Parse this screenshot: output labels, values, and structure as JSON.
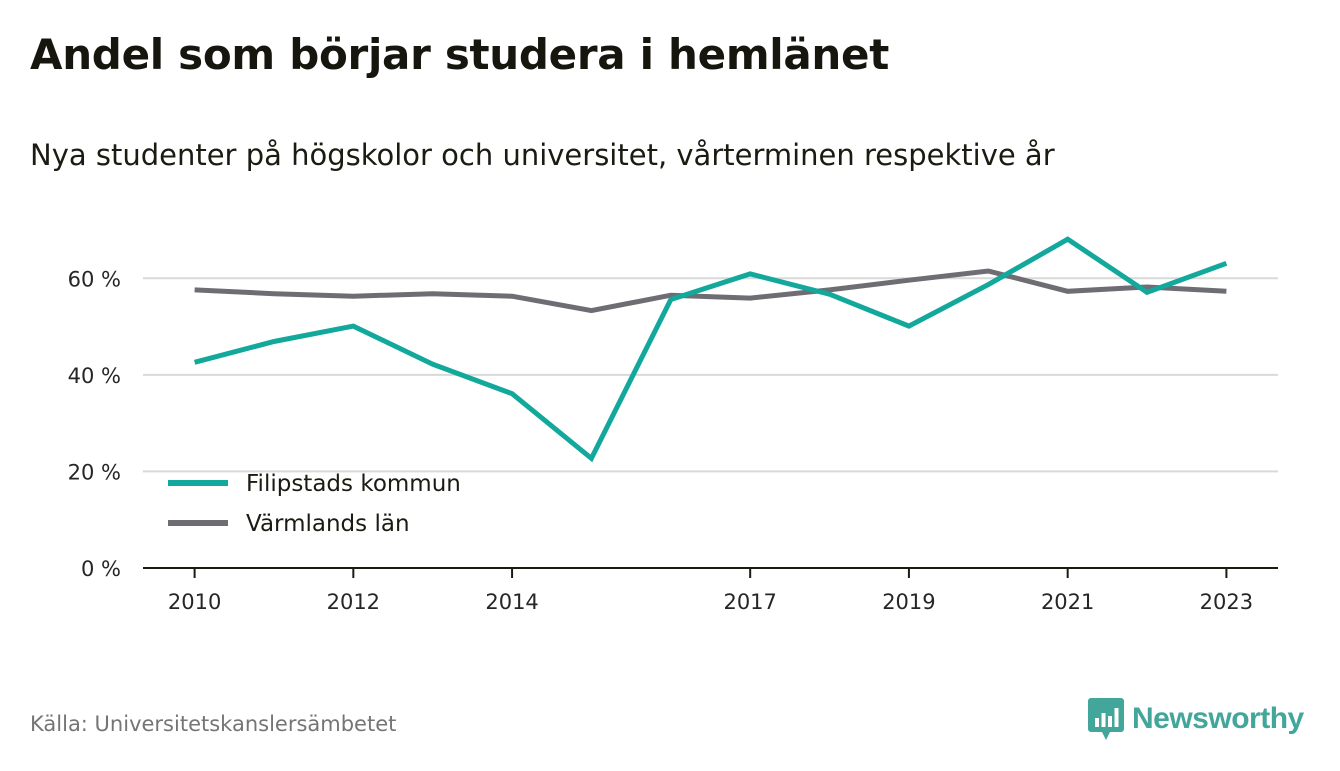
{
  "title": "Andel som börjar studera i hemlänet",
  "subtitle": "Nya studenter på högskolor och universitet, vårterminen respektive år",
  "source": "Källa: Universitetskanslersämbetet",
  "brand": "Newsworthy",
  "colors": {
    "series1": "#12a89b",
    "series2": "#6e6d73",
    "grid": "#d9d9d9",
    "axis": "#1b1b12",
    "brand": "#43a69a"
  },
  "chart_data": {
    "type": "line",
    "title": "Andel som börjar studera i hemlänet",
    "subtitle": "Nya studenter på högskolor och universitet, vårterminen respektive år",
    "xlabel": "",
    "ylabel": "",
    "x": [
      2010,
      2011,
      2012,
      2013,
      2014,
      2015,
      2016,
      2017,
      2018,
      2019,
      2020,
      2021,
      2022,
      2023
    ],
    "xticks": [
      "2010",
      "2012",
      "2014",
      "2017",
      "2019",
      "2021",
      "2023"
    ],
    "xlim": [
      2009.35,
      2023.65
    ],
    "ylim": [
      0,
      70
    ],
    "yticks": [
      0,
      20,
      40,
      60
    ],
    "ytick_labels": [
      "0 %",
      "20 %",
      "40 %",
      "60 %"
    ],
    "grid": "horizontal",
    "legend_position": "bottom-left",
    "series": [
      {
        "name": "Filipstads kommun",
        "color": "#12a89b",
        "values": [
          42.6,
          46.9,
          50.1,
          42.2,
          36.1,
          22.7,
          55.6,
          60.9,
          56.7,
          50.1,
          58.7,
          68.1,
          57.1,
          63.1
        ]
      },
      {
        "name": "Värmlands län",
        "color": "#6e6d73",
        "values": [
          57.6,
          56.8,
          56.3,
          56.8,
          56.3,
          53.3,
          56.5,
          55.9,
          57.6,
          59.6,
          61.5,
          57.3,
          58.2,
          57.3
        ]
      }
    ]
  }
}
